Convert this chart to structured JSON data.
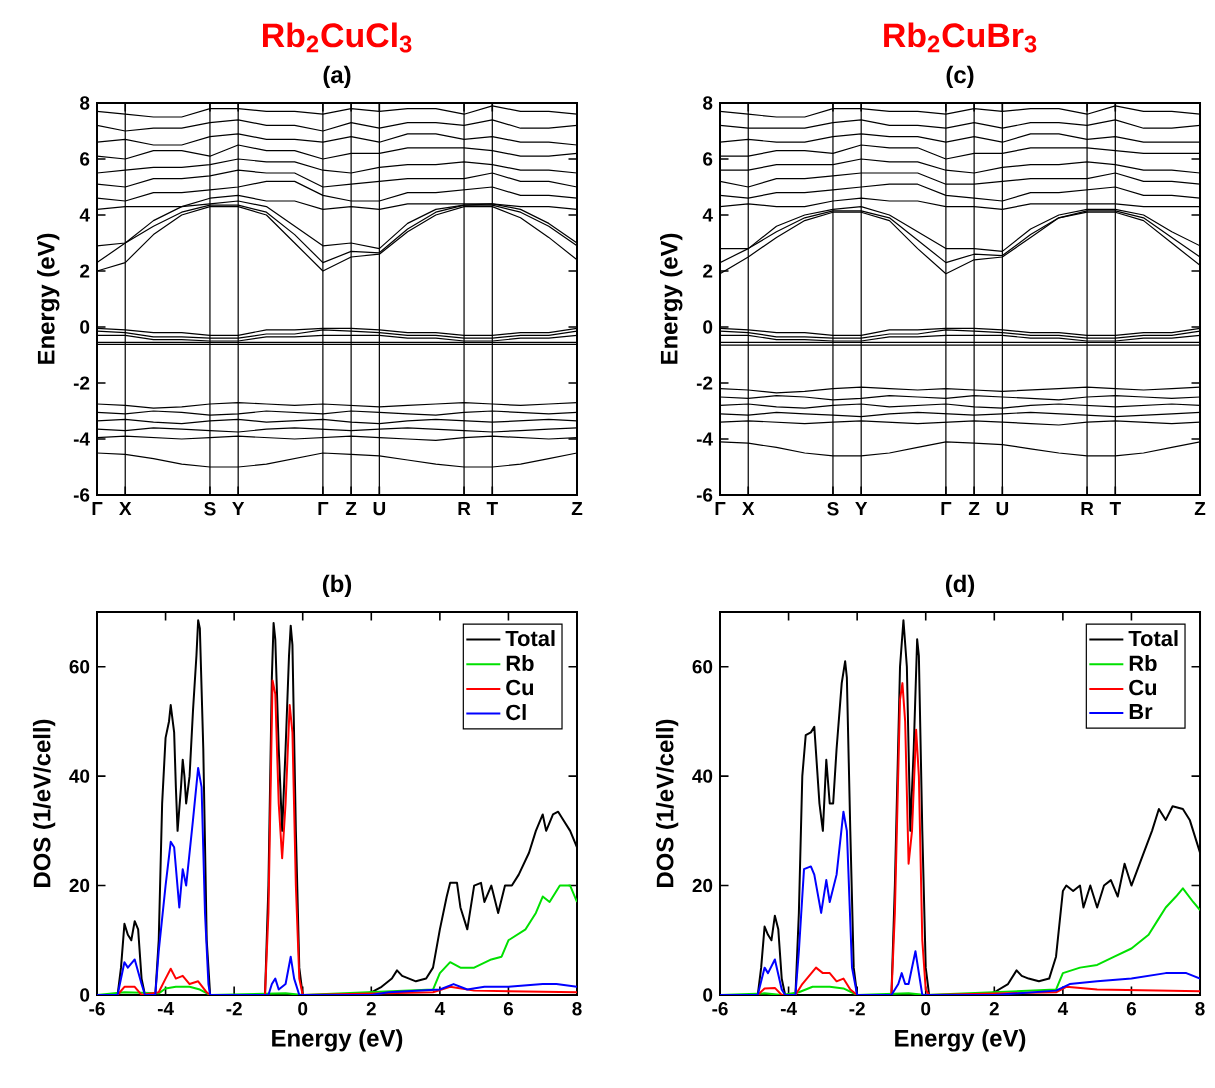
{
  "chart_data": [
    {
      "type": "line",
      "title": "Rb$_{2}$CuCl$_{3}$",
      "subtitle": "(a)",
      "ylabel": "Energy (eV)",
      "grid": "x",
      "ylim": [
        -6,
        8
      ],
      "yticks": [
        -6,
        -4,
        -2,
        0,
        2,
        4,
        6,
        8
      ],
      "categories": [
        "Γ",
        "X",
        null,
        null,
        "S",
        "Y",
        null,
        null,
        "Γ",
        "Z",
        "U",
        null,
        null,
        "R",
        "T",
        null,
        null,
        "Z"
      ],
      "series": [
        {
          "color": "#000000",
          "values": [
            2.0,
            2.3,
            3.3,
            4.0,
            4.3,
            4.3,
            4.0,
            3.0,
            2.0,
            2.5,
            2.6,
            3.4,
            4.0,
            4.3,
            4.3,
            3.9,
            3.2,
            2.4
          ]
        },
        {
          "color": "#000000",
          "values": [
            2.3,
            3.0,
            3.6,
            4.1,
            4.35,
            4.35,
            4.1,
            3.3,
            2.3,
            2.7,
            2.65,
            3.5,
            4.1,
            4.35,
            4.35,
            4.1,
            3.6,
            2.9
          ]
        },
        {
          "color": "#000000",
          "values": [
            2.9,
            3.0,
            3.8,
            4.3,
            4.4,
            4.5,
            4.3,
            3.6,
            2.9,
            3.0,
            2.8,
            3.7,
            4.2,
            4.35,
            4.4,
            4.2,
            3.7,
            3.0
          ]
        },
        {
          "color": "#000000",
          "values": [
            4.2,
            4.3,
            4.3,
            4.3,
            4.6,
            4.7,
            4.5,
            4.5,
            4.2,
            4.3,
            4.2,
            4.4,
            4.4,
            4.4,
            4.4,
            4.3,
            4.3,
            4.2
          ]
        },
        {
          "color": "#000000",
          "values": [
            4.6,
            4.5,
            4.8,
            4.8,
            4.9,
            5.0,
            5.2,
            5.2,
            4.7,
            4.5,
            4.5,
            4.8,
            4.8,
            4.9,
            5.0,
            4.7,
            4.7,
            4.6
          ]
        },
        {
          "color": "#000000",
          "values": [
            5.1,
            5.0,
            5.3,
            5.3,
            5.4,
            5.6,
            5.5,
            5.5,
            5.0,
            5.1,
            5.2,
            5.3,
            5.3,
            5.3,
            5.5,
            5.2,
            5.2,
            5.0
          ]
        },
        {
          "color": "#000000",
          "values": [
            5.5,
            5.6,
            5.7,
            5.7,
            5.8,
            6.0,
            5.9,
            5.9,
            5.6,
            5.5,
            5.7,
            5.8,
            5.8,
            5.9,
            5.8,
            5.6,
            5.6,
            5.5
          ]
        },
        {
          "color": "#000000",
          "values": [
            6.1,
            6.0,
            6.3,
            6.3,
            6.1,
            6.5,
            6.3,
            6.3,
            6.0,
            6.2,
            6.2,
            6.4,
            6.4,
            6.4,
            6.3,
            6.1,
            6.1,
            6.2
          ]
        },
        {
          "color": "#000000",
          "values": [
            6.6,
            6.7,
            6.5,
            6.5,
            6.8,
            6.9,
            6.7,
            6.7,
            6.6,
            6.8,
            6.6,
            6.9,
            6.9,
            6.7,
            6.8,
            6.6,
            6.6,
            6.5
          ]
        },
        {
          "color": "#000000",
          "values": [
            7.2,
            7.0,
            7.1,
            7.1,
            7.3,
            7.4,
            7.2,
            7.2,
            7.0,
            7.3,
            7.1,
            7.3,
            7.3,
            7.2,
            7.4,
            7.1,
            7.1,
            7.2
          ]
        },
        {
          "color": "#000000",
          "values": [
            7.7,
            7.6,
            7.5,
            7.5,
            7.8,
            7.8,
            7.7,
            7.7,
            7.6,
            7.8,
            7.7,
            7.8,
            7.8,
            7.6,
            7.9,
            7.7,
            7.7,
            7.6
          ]
        },
        {
          "color": "#000000",
          "values": [
            -0.05,
            -0.1,
            -0.2,
            -0.2,
            -0.3,
            -0.3,
            -0.1,
            -0.1,
            -0.05,
            -0.05,
            -0.1,
            -0.2,
            -0.2,
            -0.3,
            -0.3,
            -0.2,
            -0.2,
            -0.05
          ]
        },
        {
          "color": "#000000",
          "values": [
            -0.15,
            -0.2,
            -0.35,
            -0.35,
            -0.4,
            -0.4,
            -0.25,
            -0.25,
            -0.1,
            -0.15,
            -0.2,
            -0.3,
            -0.3,
            -0.4,
            -0.4,
            -0.3,
            -0.3,
            -0.15
          ]
        },
        {
          "color": "#000000",
          "values": [
            -0.3,
            -0.3,
            -0.45,
            -0.45,
            -0.5,
            -0.5,
            -0.35,
            -0.35,
            -0.3,
            -0.3,
            -0.3,
            -0.4,
            -0.4,
            -0.5,
            -0.5,
            -0.4,
            -0.4,
            -0.3
          ]
        },
        {
          "color": "#000000",
          "values": [
            -0.55,
            -0.55,
            -0.55,
            -0.55,
            -0.55,
            -0.55,
            -0.55,
            -0.55,
            -0.55,
            -0.55,
            -0.55,
            -0.55,
            -0.55,
            -0.55,
            -0.55,
            -0.55,
            -0.55,
            -0.55
          ]
        },
        {
          "color": "#000000",
          "values": [
            -0.62,
            -0.62,
            -0.62,
            -0.62,
            -0.62,
            -0.62,
            -0.62,
            -0.62,
            -0.62,
            -0.62,
            -0.62,
            -0.62,
            -0.62,
            -0.62,
            -0.62,
            -0.62,
            -0.62,
            -0.62
          ]
        },
        {
          "color": "#000000",
          "values": [
            -2.75,
            -2.8,
            -2.9,
            -2.85,
            -2.75,
            -2.7,
            -2.75,
            -2.8,
            -2.75,
            -2.8,
            -2.85,
            -2.8,
            -2.75,
            -2.7,
            -2.75,
            -2.8,
            -2.75,
            -2.7
          ]
        },
        {
          "color": "#000000",
          "values": [
            -3.05,
            -3.1,
            -3.0,
            -3.05,
            -3.15,
            -3.1,
            -3.0,
            -3.05,
            -3.1,
            -3.0,
            -3.05,
            -3.1,
            -3.15,
            -3.05,
            -3.0,
            -3.05,
            -3.1,
            -3.05
          ]
        },
        {
          "color": "#000000",
          "values": [
            -3.35,
            -3.3,
            -3.4,
            -3.45,
            -3.35,
            -3.3,
            -3.4,
            -3.35,
            -3.3,
            -3.4,
            -3.45,
            -3.35,
            -3.3,
            -3.35,
            -3.4,
            -3.35,
            -3.3,
            -3.35
          ]
        },
        {
          "color": "#000000",
          "values": [
            -3.65,
            -3.7,
            -3.6,
            -3.65,
            -3.7,
            -3.75,
            -3.65,
            -3.6,
            -3.65,
            -3.7,
            -3.65,
            -3.6,
            -3.65,
            -3.7,
            -3.75,
            -3.7,
            -3.65,
            -3.6
          ]
        },
        {
          "color": "#000000",
          "values": [
            -3.95,
            -3.9,
            -3.95,
            -4.0,
            -3.95,
            -3.9,
            -3.95,
            -4.0,
            -3.95,
            -3.9,
            -3.95,
            -4.0,
            -4.05,
            -3.95,
            -3.9,
            -3.95,
            -4.0,
            -3.95
          ]
        },
        {
          "color": "#000000",
          "values": [
            -4.5,
            -4.55,
            -4.7,
            -4.9,
            -5.0,
            -5.0,
            -4.9,
            -4.7,
            -4.5,
            -4.55,
            -4.6,
            -4.75,
            -4.9,
            -5.0,
            -5.0,
            -4.9,
            -4.7,
            -4.5
          ]
        }
      ]
    },
    {
      "type": "line",
      "title": "(b)",
      "xlabel": "Energy (eV)",
      "ylabel": "DOS (1/eV/cell)",
      "legend": "top right",
      "xlim": [
        -6,
        8
      ],
      "ylim": [
        0,
        70
      ],
      "xticks": [
        -6,
        -4,
        -2,
        0,
        2,
        4,
        6,
        8
      ],
      "yticks": [
        0,
        20,
        40,
        60
      ],
      "series": [
        {
          "name": "Total",
          "color": "#000000",
          "x": [
            -6,
            -5.4,
            -5.3,
            -5.2,
            -5.1,
            -5.0,
            -4.9,
            -4.8,
            -4.7,
            -4.6,
            -4.3,
            -4.2,
            -4.1,
            -4.0,
            -3.9,
            -3.85,
            -3.75,
            -3.7,
            -3.65,
            -3.55,
            -3.5,
            -3.45,
            -3.4,
            -3.3,
            -3.2,
            -3.1,
            -3.05,
            -3.0,
            -2.9,
            -2.8,
            -2.7,
            -1.1,
            -1.0,
            -0.9,
            -0.85,
            -0.8,
            -0.7,
            -0.6,
            -0.5,
            -0.4,
            -0.35,
            -0.3,
            -0.2,
            -0.1,
            0,
            1.8,
            2.0,
            2.3,
            2.6,
            2.75,
            2.9,
            3.1,
            3.3,
            3.6,
            3.8,
            4.0,
            4.2,
            4.3,
            4.5,
            4.6,
            4.8,
            5.0,
            5.2,
            5.3,
            5.5,
            5.7,
            5.9,
            6.1,
            6.3,
            6.6,
            6.8,
            7.0,
            7.1,
            7.3,
            7.45,
            7.6,
            7.8,
            8.0
          ],
          "values": [
            0,
            0,
            5,
            13,
            11,
            10,
            13.5,
            12,
            3,
            0,
            0,
            10,
            35,
            47,
            50,
            53,
            48,
            38,
            30,
            38,
            43,
            40,
            35,
            40,
            52,
            62,
            68.5,
            67,
            45,
            10,
            0,
            0,
            20,
            58,
            68,
            65,
            45,
            30,
            45,
            62,
            67.5,
            64,
            30,
            5,
            0,
            0,
            0.5,
            1.5,
            3,
            4.5,
            3.5,
            3,
            2.5,
            3,
            5,
            12,
            18,
            20.5,
            20.5,
            16,
            12,
            20,
            20.5,
            17,
            20,
            15,
            20,
            20,
            22,
            26,
            30,
            33,
            30,
            33,
            33.5,
            32,
            30,
            27
          ]
        },
        {
          "name": "Rb",
          "color": "#00e000",
          "x": [
            -6,
            -5.2,
            -4.2,
            -4.0,
            -3.7,
            -3.3,
            -3.0,
            -2.7,
            -0.5,
            0,
            3.8,
            4.0,
            4.3,
            4.6,
            5.0,
            5.5,
            5.8,
            6.0,
            6.5,
            6.8,
            7.0,
            7.2,
            7.5,
            7.8,
            8.0
          ],
          "values": [
            0,
            0.5,
            0.3,
            1.2,
            1.5,
            1.5,
            1,
            0,
            0.3,
            0,
            1,
            4,
            6,
            5,
            5,
            6.5,
            7,
            10,
            12,
            15,
            18,
            17,
            20,
            20,
            17
          ]
        },
        {
          "name": "Cu",
          "color": "#ff0000",
          "x": [
            -6,
            -5.4,
            -5.2,
            -4.9,
            -4.7,
            -4.2,
            -4.0,
            -3.85,
            -3.7,
            -3.5,
            -3.3,
            -3.05,
            -2.8,
            -2.7,
            -1.1,
            -1.0,
            -0.88,
            -0.8,
            -0.7,
            -0.6,
            -0.5,
            -0.38,
            -0.3,
            -0.2,
            -0.1,
            0,
            3.8,
            4.3,
            5.0,
            8.0
          ],
          "values": [
            0,
            0,
            1.5,
            1.5,
            0,
            0.5,
            3,
            4.8,
            3,
            3.5,
            2,
            2.5,
            0.5,
            0,
            0,
            15,
            57.5,
            55,
            35,
            25,
            35,
            53,
            48,
            20,
            3,
            0,
            0.5,
            1.5,
            0.8,
            0.5
          ]
        },
        {
          "name": "Cl",
          "color": "#0000ff",
          "x": [
            -6,
            -5.4,
            -5.2,
            -5.1,
            -4.9,
            -4.7,
            -4.6,
            -4.3,
            -4.2,
            -4.0,
            -3.85,
            -3.75,
            -3.6,
            -3.5,
            -3.4,
            -3.2,
            -3.05,
            -2.95,
            -2.85,
            -2.75,
            -2.7,
            -1.0,
            -0.9,
            -0.8,
            -0.7,
            -0.5,
            -0.35,
            -0.25,
            -0.1,
            2.0,
            2.5,
            4.0,
            4.4,
            4.8,
            5.3,
            6.0,
            7.0,
            7.4,
            8.0
          ],
          "values": [
            0,
            0,
            6,
            5,
            6.5,
            2,
            0,
            0,
            8,
            20,
            28,
            27,
            16,
            23,
            20,
            32,
            41.5,
            38,
            15,
            2,
            0,
            0,
            2,
            3,
            1,
            2,
            7,
            3,
            0,
            0,
            0.5,
            1,
            2,
            1,
            1.5,
            1.5,
            2,
            2,
            1.5
          ]
        }
      ]
    },
    {
      "type": "line",
      "title": "Rb$_{2}$CuBr$_{3}$",
      "subtitle": "(c)",
      "ylabel": "Energy (eV)",
      "grid": "x",
      "ylim": [
        -6,
        8
      ],
      "yticks": [
        -6,
        -4,
        -2,
        0,
        2,
        4,
        6,
        8
      ],
      "categories": [
        "Γ",
        "X",
        null,
        null,
        "S",
        "Y",
        null,
        null,
        "Γ",
        "Z",
        "U",
        null,
        null,
        "R",
        "T",
        null,
        null,
        "Z"
      ],
      "series": [
        {
          "color": "#000000",
          "values": [
            1.9,
            2.5,
            3.2,
            3.8,
            4.1,
            4.1,
            3.8,
            2.8,
            1.9,
            2.4,
            2.5,
            3.2,
            3.9,
            4.1,
            4.1,
            3.8,
            3.0,
            2.2
          ]
        },
        {
          "color": "#000000",
          "values": [
            2.3,
            2.8,
            3.4,
            3.9,
            4.15,
            4.15,
            3.9,
            3.1,
            2.3,
            2.6,
            2.55,
            3.3,
            3.9,
            4.15,
            4.15,
            3.9,
            3.2,
            2.5
          ]
        },
        {
          "color": "#000000",
          "values": [
            2.8,
            2.8,
            3.6,
            4.0,
            4.2,
            4.3,
            4.0,
            3.4,
            2.8,
            2.8,
            2.7,
            3.5,
            4.0,
            4.2,
            4.2,
            4.0,
            3.4,
            2.9
          ]
        },
        {
          "color": "#000000",
          "values": [
            4.3,
            4.4,
            4.3,
            4.3,
            4.5,
            4.6,
            4.5,
            4.5,
            4.3,
            4.3,
            4.2,
            4.4,
            4.4,
            4.4,
            4.4,
            4.3,
            4.3,
            4.3
          ]
        },
        {
          "color": "#000000",
          "values": [
            4.7,
            4.6,
            4.8,
            4.8,
            4.9,
            5.0,
            5.1,
            5.1,
            4.7,
            4.6,
            4.5,
            4.8,
            4.8,
            4.9,
            5.0,
            4.7,
            4.7,
            4.6
          ]
        },
        {
          "color": "#000000",
          "values": [
            5.2,
            5.0,
            5.3,
            5.3,
            5.4,
            5.5,
            5.5,
            5.5,
            5.1,
            5.1,
            5.2,
            5.3,
            5.3,
            5.3,
            5.5,
            5.2,
            5.2,
            5.1
          ]
        },
        {
          "color": "#000000",
          "values": [
            5.6,
            5.6,
            5.8,
            5.8,
            5.8,
            6.0,
            5.9,
            5.9,
            5.6,
            5.5,
            5.7,
            5.8,
            5.8,
            5.9,
            5.8,
            5.6,
            5.6,
            5.5
          ]
        },
        {
          "color": "#000000",
          "values": [
            6.1,
            6.1,
            6.3,
            6.3,
            6.2,
            6.5,
            6.4,
            6.4,
            6.0,
            6.2,
            6.2,
            6.4,
            6.4,
            6.4,
            6.3,
            6.2,
            6.2,
            6.2
          ]
        },
        {
          "color": "#000000",
          "values": [
            6.6,
            6.7,
            6.6,
            6.6,
            6.8,
            6.9,
            6.8,
            6.8,
            6.6,
            6.8,
            6.6,
            6.9,
            6.9,
            6.7,
            6.8,
            6.6,
            6.6,
            6.6
          ]
        },
        {
          "color": "#000000",
          "values": [
            7.2,
            7.1,
            7.1,
            7.1,
            7.3,
            7.4,
            7.2,
            7.2,
            7.1,
            7.3,
            7.1,
            7.3,
            7.3,
            7.2,
            7.4,
            7.1,
            7.1,
            7.2
          ]
        },
        {
          "color": "#000000",
          "values": [
            7.7,
            7.6,
            7.5,
            7.5,
            7.8,
            7.8,
            7.7,
            7.7,
            7.6,
            7.8,
            7.7,
            7.8,
            7.8,
            7.6,
            7.9,
            7.7,
            7.7,
            7.6
          ]
        },
        {
          "color": "#000000",
          "values": [
            -0.05,
            -0.1,
            -0.2,
            -0.2,
            -0.3,
            -0.3,
            -0.1,
            -0.1,
            -0.05,
            -0.05,
            -0.1,
            -0.2,
            -0.2,
            -0.3,
            -0.3,
            -0.2,
            -0.2,
            -0.05
          ]
        },
        {
          "color": "#000000",
          "values": [
            -0.15,
            -0.2,
            -0.35,
            -0.35,
            -0.4,
            -0.4,
            -0.25,
            -0.25,
            -0.1,
            -0.15,
            -0.2,
            -0.3,
            -0.3,
            -0.4,
            -0.4,
            -0.3,
            -0.3,
            -0.15
          ]
        },
        {
          "color": "#000000",
          "values": [
            -0.3,
            -0.3,
            -0.45,
            -0.45,
            -0.5,
            -0.5,
            -0.35,
            -0.35,
            -0.3,
            -0.3,
            -0.3,
            -0.4,
            -0.4,
            -0.5,
            -0.5,
            -0.4,
            -0.4,
            -0.3
          ]
        },
        {
          "color": "#000000",
          "values": [
            -0.55,
            -0.55,
            -0.55,
            -0.55,
            -0.55,
            -0.55,
            -0.55,
            -0.55,
            -0.55,
            -0.55,
            -0.55,
            -0.55,
            -0.55,
            -0.55,
            -0.55,
            -0.55,
            -0.55,
            -0.55
          ]
        },
        {
          "color": "#000000",
          "values": [
            -0.65,
            -0.65,
            -0.65,
            -0.65,
            -0.65,
            -0.65,
            -0.65,
            -0.65,
            -0.65,
            -0.65,
            -0.65,
            -0.65,
            -0.65,
            -0.65,
            -0.65,
            -0.65,
            -0.65,
            -0.65
          ]
        },
        {
          "color": "#000000",
          "values": [
            -2.2,
            -2.25,
            -2.35,
            -2.3,
            -2.2,
            -2.15,
            -2.2,
            -2.25,
            -2.2,
            -2.25,
            -2.3,
            -2.25,
            -2.2,
            -2.15,
            -2.2,
            -2.25,
            -2.2,
            -2.15
          ]
        },
        {
          "color": "#000000",
          "values": [
            -2.5,
            -2.55,
            -2.45,
            -2.5,
            -2.6,
            -2.55,
            -2.45,
            -2.5,
            -2.55,
            -2.45,
            -2.5,
            -2.55,
            -2.6,
            -2.5,
            -2.45,
            -2.5,
            -2.55,
            -2.5
          ]
        },
        {
          "color": "#000000",
          "values": [
            -2.8,
            -2.75,
            -2.85,
            -2.9,
            -2.8,
            -2.75,
            -2.85,
            -2.8,
            -2.75,
            -2.85,
            -2.9,
            -2.8,
            -2.75,
            -2.8,
            -2.85,
            -2.8,
            -2.75,
            -2.8
          ]
        },
        {
          "color": "#000000",
          "values": [
            -3.1,
            -3.15,
            -3.05,
            -3.1,
            -3.15,
            -3.2,
            -3.1,
            -3.05,
            -3.1,
            -3.15,
            -3.1,
            -3.05,
            -3.1,
            -3.15,
            -3.2,
            -3.15,
            -3.1,
            -3.05
          ]
        },
        {
          "color": "#000000",
          "values": [
            -3.4,
            -3.35,
            -3.4,
            -3.45,
            -3.4,
            -3.35,
            -3.4,
            -3.45,
            -3.4,
            -3.35,
            -3.4,
            -3.45,
            -3.5,
            -3.4,
            -3.35,
            -3.4,
            -3.45,
            -3.4
          ]
        },
        {
          "color": "#000000",
          "values": [
            -4.1,
            -4.15,
            -4.3,
            -4.5,
            -4.6,
            -4.6,
            -4.5,
            -4.3,
            -4.1,
            -4.15,
            -4.2,
            -4.35,
            -4.5,
            -4.6,
            -4.6,
            -4.5,
            -4.3,
            -4.1
          ]
        }
      ]
    },
    {
      "type": "line",
      "title": "(d)",
      "xlabel": "Energy (eV)",
      "ylabel": "DOS (1/eV/cell)",
      "legend": "top right",
      "xlim": [
        -6,
        8
      ],
      "ylim": [
        0,
        70
      ],
      "xticks": [
        -6,
        -4,
        -2,
        0,
        2,
        4,
        6,
        8
      ],
      "yticks": [
        0,
        20,
        40,
        60
      ],
      "series": [
        {
          "name": "Total",
          "color": "#000000",
          "x": [
            -6,
            -4.9,
            -4.8,
            -4.7,
            -4.6,
            -4.5,
            -4.4,
            -4.3,
            -4.2,
            -4.1,
            -3.8,
            -3.7,
            -3.6,
            -3.5,
            -3.35,
            -3.25,
            -3.1,
            -3.0,
            -2.9,
            -2.8,
            -2.7,
            -2.6,
            -2.45,
            -2.35,
            -2.3,
            -2.2,
            -2.1,
            -2.0,
            -1.0,
            -0.9,
            -0.75,
            -0.65,
            -0.55,
            -0.45,
            -0.35,
            -0.25,
            -0.2,
            -0.1,
            0.0,
            0.1,
            1.8,
            2.0,
            2.4,
            2.65,
            2.8,
            3.0,
            3.3,
            3.6,
            3.8,
            4.0,
            4.1,
            4.3,
            4.5,
            4.6,
            4.8,
            5.0,
            5.2,
            5.4,
            5.6,
            5.8,
            6.0,
            6.3,
            6.6,
            6.8,
            7.0,
            7.2,
            7.5,
            7.7,
            8.0
          ],
          "values": [
            0,
            0,
            5,
            12.5,
            11,
            10,
            14.5,
            12,
            3,
            0,
            0,
            15,
            40,
            47.5,
            48,
            49,
            35,
            30,
            43,
            35,
            35,
            45,
            57,
            61,
            58,
            30,
            5,
            0,
            0,
            20,
            60,
            68.5,
            60,
            30,
            45,
            65,
            62,
            30,
            5,
            0,
            0,
            0.5,
            2,
            4.5,
            3.5,
            3,
            2.5,
            3,
            7,
            19,
            20,
            19,
            20,
            16,
            20,
            16,
            20,
            21,
            18,
            24,
            20,
            25,
            30,
            34,
            32,
            34.5,
            34,
            32,
            26
          ]
        },
        {
          "name": "Rb",
          "color": "#00e000",
          "x": [
            -6,
            -4.7,
            -4.2,
            -3.7,
            -3.3,
            -2.8,
            -2.4,
            -2.0,
            -0.5,
            0,
            3.8,
            4.0,
            4.5,
            5.0,
            5.5,
            6.0,
            6.5,
            6.8,
            7.0,
            7.3,
            7.5,
            7.8,
            8.0
          ],
          "values": [
            0,
            0.3,
            0,
            0.5,
            1.5,
            1.5,
            1.2,
            0,
            0.3,
            0,
            1,
            4,
            5,
            5.5,
            7,
            8.5,
            11,
            14,
            16,
            18,
            19.5,
            17,
            15.5
          ]
        },
        {
          "name": "Cu",
          "color": "#ff0000",
          "x": [
            -6,
            -4.9,
            -4.7,
            -4.4,
            -4.2,
            -3.8,
            -3.6,
            -3.2,
            -3.0,
            -2.8,
            -2.6,
            -2.4,
            -2.2,
            -2.0,
            -1.0,
            -0.9,
            -0.75,
            -0.68,
            -0.6,
            -0.5,
            -0.4,
            -0.28,
            -0.2,
            -0.1,
            0,
            0.1,
            3.8,
            4.1,
            5.0,
            8.0
          ],
          "values": [
            0,
            0,
            1.2,
            1.3,
            0,
            0,
            2,
            5,
            4,
            4,
            2.5,
            3,
            1,
            0,
            0,
            15,
            54,
            57,
            50,
            24,
            30,
            48.5,
            40,
            10,
            1,
            0,
            0.5,
            1.5,
            1,
            0.7
          ]
        },
        {
          "name": "Br",
          "color": "#0000ff",
          "x": [
            -6,
            -4.9,
            -4.7,
            -4.6,
            -4.4,
            -4.2,
            -4.1,
            -3.8,
            -3.7,
            -3.55,
            -3.35,
            -3.25,
            -3.05,
            -2.9,
            -2.8,
            -2.6,
            -2.4,
            -2.3,
            -2.15,
            -2.0,
            -1.0,
            -0.8,
            -0.7,
            -0.6,
            -0.5,
            -0.3,
            -0.2,
            -0.1,
            2.0,
            3.8,
            4.2,
            5.0,
            6.0,
            7.0,
            7.6,
            8.0
          ],
          "values": [
            0,
            0,
            5,
            4,
            6.5,
            1,
            0,
            0,
            8,
            23,
            23.5,
            22,
            15,
            21,
            17,
            22,
            33.5,
            30,
            5,
            0,
            0,
            2,
            4,
            2,
            2,
            8,
            4,
            0,
            0,
            0.8,
            2,
            2.5,
            3,
            4,
            4,
            3
          ]
        }
      ]
    }
  ]
}
